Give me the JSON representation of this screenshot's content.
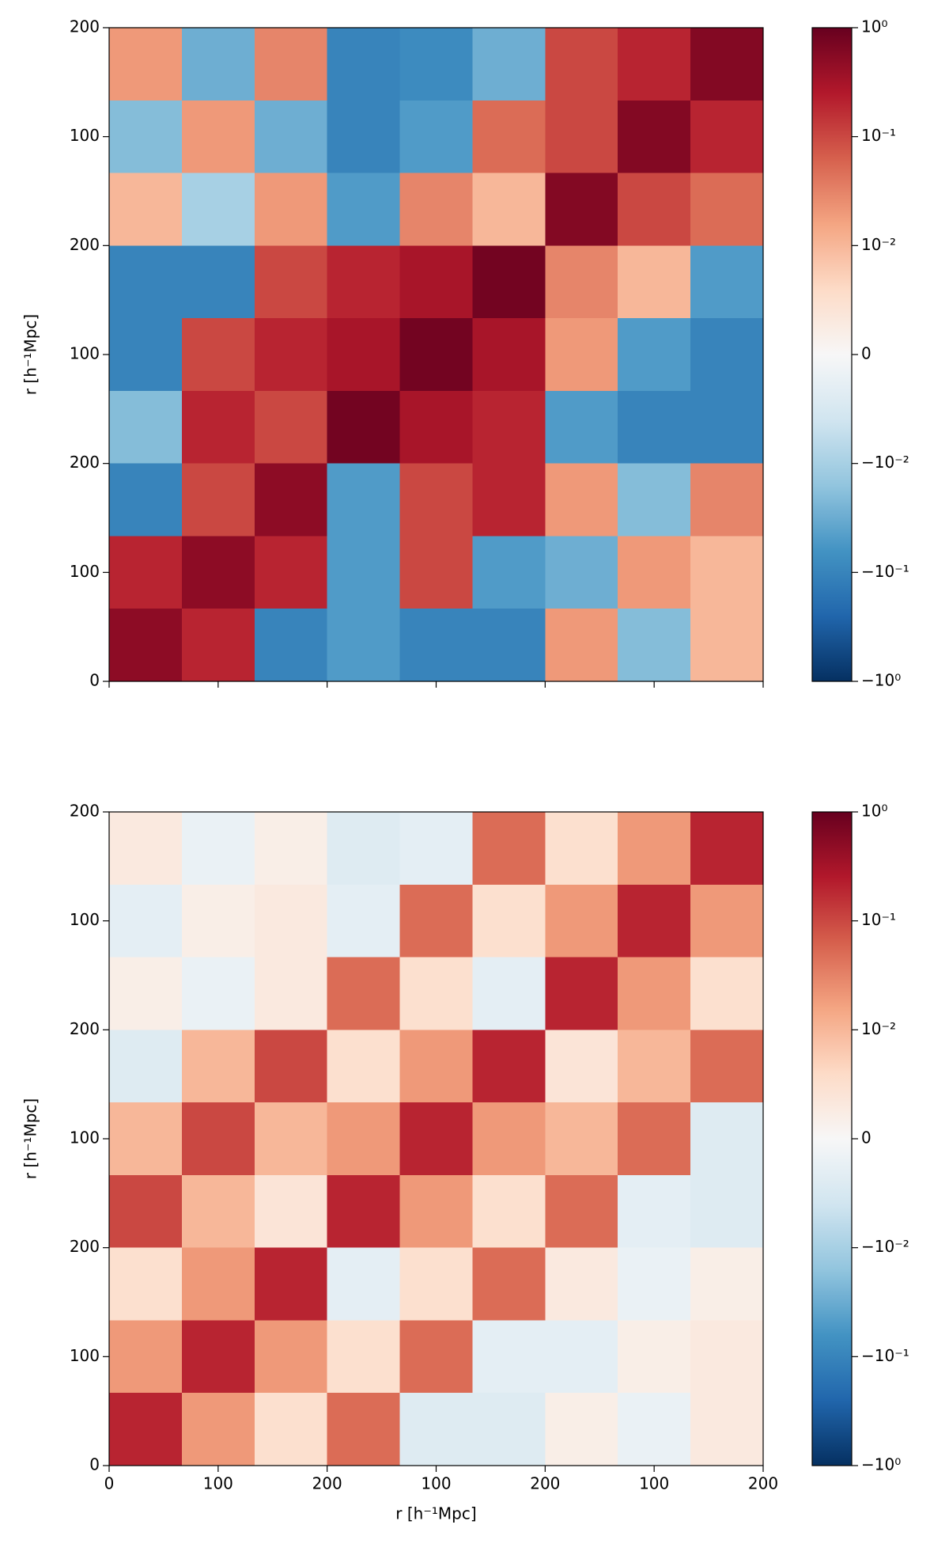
{
  "chart_data": [
    {
      "type": "heatmap",
      "cmap": "RdBu_r",
      "ylabel": "r [h⁻¹Mpc]",
      "xlim": [
        0,
        600
      ],
      "ylim": [
        0,
        600
      ],
      "xticks": [
        0,
        100,
        200,
        300,
        400,
        500,
        600
      ],
      "xtick_labels": false,
      "yticks": [
        0,
        100,
        200,
        {
          "value": 300,
          "label": "100"
        },
        {
          "value": 400,
          "label": "200"
        },
        {
          "value": 500,
          "label": "100"
        },
        {
          "value": 600,
          "label": "200"
        }
      ],
      "z": [
        [
          0.02,
          -0.03,
          0.03,
          -0.1,
          -0.08,
          -0.03,
          0.1,
          0.2,
          0.6
        ],
        [
          -0.02,
          0.02,
          -0.03,
          -0.1,
          -0.05,
          0.05,
          0.1,
          0.6,
          0.2
        ],
        [
          0.01,
          -0.01,
          0.02,
          -0.05,
          0.03,
          0.01,
          0.6,
          0.1,
          0.05
        ],
        [
          -0.1,
          -0.1,
          0.1,
          0.2,
          0.3,
          0.8,
          0.03,
          0.01,
          -0.05
        ],
        [
          -0.1,
          0.1,
          0.2,
          0.3,
          0.8,
          0.3,
          0.02,
          -0.05,
          -0.1
        ],
        [
          -0.02,
          0.2,
          0.1,
          0.8,
          0.3,
          0.2,
          -0.05,
          -0.1,
          -0.1
        ],
        [
          -0.1,
          0.1,
          0.5,
          -0.05,
          0.1,
          0.2,
          0.02,
          -0.02,
          0.03
        ],
        [
          0.2,
          0.5,
          0.2,
          -0.05,
          0.1,
          -0.05,
          -0.03,
          0.02,
          0.01
        ],
        [
          0.5,
          0.2,
          -0.1,
          -0.05,
          -0.1,
          -0.1,
          0.02,
          -0.02,
          0.01
        ]
      ],
      "colorbar": {
        "scale": "symlog",
        "linthresh": 0.01,
        "lim": [
          -1,
          1
        ],
        "ticks": [
          {
            "value": 1,
            "label": "10⁰"
          },
          {
            "value": 0.1,
            "label": "10⁻¹"
          },
          {
            "value": 0.01,
            "label": "10⁻²"
          },
          0,
          {
            "value": -0.01,
            "label": "−10⁻²"
          },
          {
            "value": -0.1,
            "label": "−10⁻¹"
          },
          {
            "value": -1,
            "label": "−10⁰"
          }
        ]
      }
    },
    {
      "type": "heatmap",
      "cmap": "RdBu_r",
      "xlabel": "r [h⁻¹Mpc]",
      "ylabel": "r [h⁻¹Mpc]",
      "xlim": [
        0,
        600
      ],
      "ylim": [
        0,
        600
      ],
      "xticks": [
        0,
        100,
        200,
        {
          "value": 300,
          "label": "100"
        },
        {
          "value": 400,
          "label": "200"
        },
        {
          "value": 500,
          "label": "100"
        },
        {
          "value": 600,
          "label": "200"
        }
      ],
      "xtick_labels": true,
      "yticks": [
        0,
        100,
        200,
        {
          "value": 300,
          "label": "100"
        },
        {
          "value": 400,
          "label": "200"
        },
        {
          "value": 500,
          "label": "100"
        },
        {
          "value": 600,
          "label": "200"
        }
      ],
      "z": [
        [
          0.003,
          -0.002,
          0.002,
          -0.004,
          -0.003,
          0.05,
          0.005,
          0.02,
          0.2
        ],
        [
          -0.003,
          0.002,
          0.003,
          -0.003,
          0.05,
          0.005,
          0.02,
          0.2,
          0.02
        ],
        [
          0.002,
          -0.002,
          0.003,
          0.05,
          0.005,
          -0.003,
          0.2,
          0.02,
          0.005
        ],
        [
          -0.004,
          0.01,
          0.1,
          0.005,
          0.02,
          0.2,
          0.004,
          0.01,
          0.05
        ],
        [
          0.01,
          0.1,
          0.01,
          0.02,
          0.2,
          0.02,
          0.01,
          0.05,
          -0.004
        ],
        [
          0.1,
          0.01,
          0.004,
          0.2,
          0.02,
          0.005,
          0.05,
          -0.003,
          -0.004
        ],
        [
          0.005,
          0.02,
          0.2,
          -0.003,
          0.005,
          0.05,
          0.003,
          -0.002,
          0.002
        ],
        [
          0.02,
          0.2,
          0.02,
          0.005,
          0.05,
          -0.003,
          -0.003,
          0.002,
          0.003
        ],
        [
          0.2,
          0.02,
          0.005,
          0.05,
          -0.004,
          -0.004,
          0.002,
          -0.002,
          0.003
        ]
      ],
      "colorbar": {
        "scale": "symlog",
        "linthresh": 0.01,
        "lim": [
          -1,
          1
        ],
        "ticks": [
          {
            "value": 1,
            "label": "10⁰"
          },
          {
            "value": 0.1,
            "label": "10⁻¹"
          },
          {
            "value": 0.01,
            "label": "10⁻²"
          },
          0,
          {
            "value": -0.01,
            "label": "−10⁻²"
          },
          {
            "value": -0.1,
            "label": "−10⁻¹"
          },
          {
            "value": -1,
            "label": "−10⁰"
          }
        ]
      }
    }
  ]
}
